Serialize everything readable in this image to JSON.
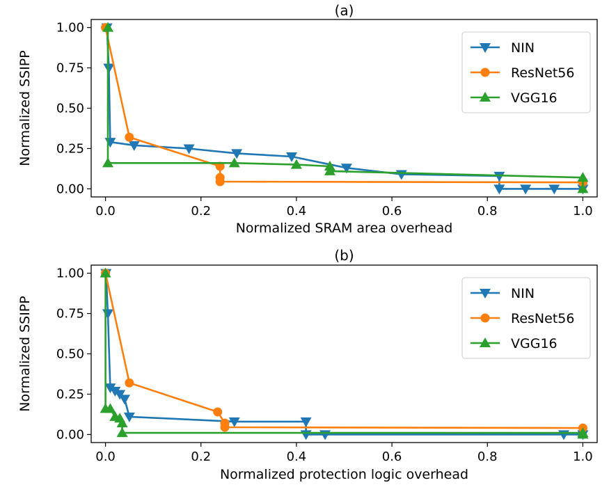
{
  "chart_data": [
    {
      "type": "line",
      "title": "(a)",
      "xlabel": "Normalized SRAM area overhead",
      "ylabel": "Normalized SSIPP",
      "xlim": [
        -0.03,
        1.03
      ],
      "ylim": [
        -0.05,
        1.05
      ],
      "xticks": [
        0.0,
        0.2,
        0.4,
        0.6,
        0.8,
        1.0
      ],
      "xtick_labels": [
        "0.0",
        "0.2",
        "0.4",
        "0.6",
        "0.8",
        "1.0"
      ],
      "yticks": [
        0.0,
        0.25,
        0.5,
        0.75,
        1.0
      ],
      "ytick_labels": [
        "0.00",
        "0.25",
        "0.50",
        "0.75",
        "1.00"
      ],
      "legend": "upper right",
      "series": [
        {
          "name": "NIN",
          "color": "#1f77b4",
          "marker": "triangle-down",
          "x": [
            0.003,
            0.007,
            0.01,
            0.06,
            0.175,
            0.275,
            0.39,
            0.505,
            0.62,
            0.825,
            0.825,
            0.88,
            0.94,
            1.0
          ],
          "y": [
            1.0,
            0.75,
            0.29,
            0.27,
            0.25,
            0.22,
            0.2,
            0.13,
            0.09,
            0.08,
            0.0,
            0.0,
            0.0,
            0.0
          ]
        },
        {
          "name": "ResNet56",
          "color": "#ff7f0e",
          "marker": "circle",
          "x": [
            0.0,
            0.05,
            0.24,
            0.24,
            0.24,
            1.0
          ],
          "y": [
            1.0,
            0.32,
            0.14,
            0.07,
            0.045,
            0.04
          ]
        },
        {
          "name": "VGG16",
          "color": "#2ca02c",
          "marker": "triangle-up",
          "x": [
            0.005,
            0.005,
            0.27,
            0.4,
            0.47,
            0.47,
            1.0,
            1.0
          ],
          "y": [
            1.0,
            0.16,
            0.16,
            0.15,
            0.14,
            0.11,
            0.07,
            0.0
          ]
        }
      ]
    },
    {
      "type": "line",
      "title": "(b)",
      "xlabel": "Normalized protection logic overhead",
      "ylabel": "Normalized SSIPP",
      "xlim": [
        -0.03,
        1.03
      ],
      "ylim": [
        -0.05,
        1.05
      ],
      "xticks": [
        0.0,
        0.2,
        0.4,
        0.6,
        0.8,
        1.0
      ],
      "xtick_labels": [
        "0.0",
        "0.2",
        "0.4",
        "0.6",
        "0.8",
        "1.0"
      ],
      "yticks": [
        0.0,
        0.25,
        0.5,
        0.75,
        1.0
      ],
      "ytick_labels": [
        "0.00",
        "0.25",
        "0.50",
        "0.75",
        "1.00"
      ],
      "legend": "upper right",
      "series": [
        {
          "name": "NIN",
          "color": "#1f77b4",
          "marker": "triangle-down",
          "x": [
            0.001,
            0.005,
            0.01,
            0.02,
            0.03,
            0.04,
            0.05,
            0.27,
            0.42,
            0.42,
            0.46,
            0.96,
            1.0
          ],
          "y": [
            1.0,
            0.75,
            0.29,
            0.27,
            0.25,
            0.22,
            0.11,
            0.08,
            0.08,
            0.0,
            0.0,
            0.0,
            0.0
          ]
        },
        {
          "name": "ResNet56",
          "color": "#ff7f0e",
          "marker": "circle",
          "x": [
            0.0,
            0.05,
            0.235,
            0.25,
            0.25,
            1.0
          ],
          "y": [
            1.0,
            0.32,
            0.14,
            0.07,
            0.045,
            0.04
          ]
        },
        {
          "name": "VGG16",
          "color": "#2ca02c",
          "marker": "triangle-up",
          "x": [
            0.0,
            0.0,
            0.01,
            0.02,
            0.03,
            0.035,
            0.035,
            1.0,
            1.0
          ],
          "y": [
            1.0,
            0.16,
            0.16,
            0.11,
            0.1,
            0.07,
            0.01,
            0.01,
            0.0
          ]
        }
      ]
    }
  ]
}
